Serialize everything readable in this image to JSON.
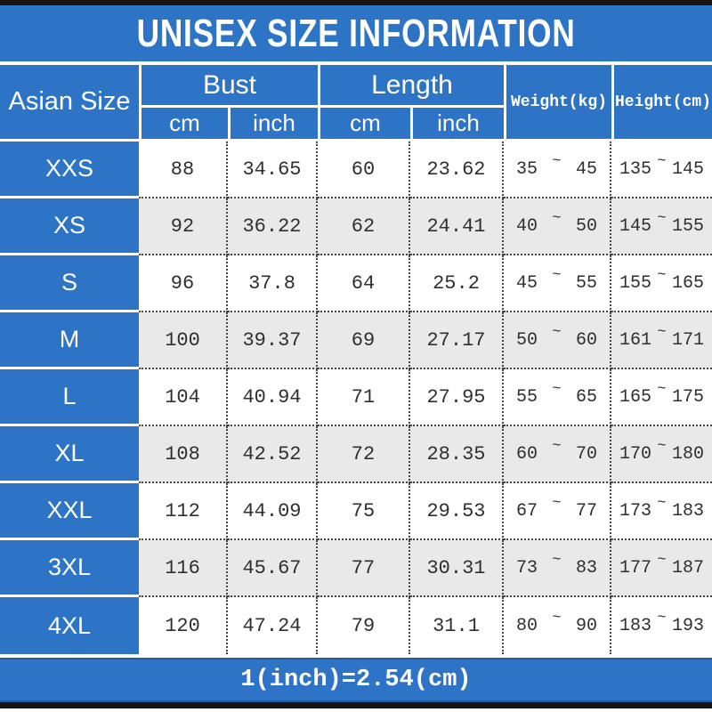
{
  "title": "UNISEX SIZE INFORMATION",
  "header": {
    "size_col": "Asian Size",
    "bust": "Bust",
    "length": "Length",
    "weight": "Weight(kg)",
    "height": "Height(cm)",
    "units": [
      "cm",
      "inch",
      "cm",
      "inch"
    ]
  },
  "tilde": "~",
  "rows": [
    {
      "size": "XXS",
      "bust_cm": "88",
      "bust_inch": "34.65",
      "length_cm": "60",
      "length_inch": "23.62",
      "weight_min": "35",
      "weight_max": "45",
      "height_min": "135",
      "height_max": "145"
    },
    {
      "size": "XS",
      "bust_cm": "92",
      "bust_inch": "36.22",
      "length_cm": "62",
      "length_inch": "24.41",
      "weight_min": "40",
      "weight_max": "50",
      "height_min": "145",
      "height_max": "155"
    },
    {
      "size": "S",
      "bust_cm": "96",
      "bust_inch": "37.8",
      "length_cm": "64",
      "length_inch": "25.2",
      "weight_min": "45",
      "weight_max": "55",
      "height_min": "155",
      "height_max": "165"
    },
    {
      "size": "M",
      "bust_cm": "100",
      "bust_inch": "39.37",
      "length_cm": "69",
      "length_inch": "27.17",
      "weight_min": "50",
      "weight_max": "60",
      "height_min": "161",
      "height_max": "171"
    },
    {
      "size": "L",
      "bust_cm": "104",
      "bust_inch": "40.94",
      "length_cm": "71",
      "length_inch": "27.95",
      "weight_min": "55",
      "weight_max": "65",
      "height_min": "165",
      "height_max": "175"
    },
    {
      "size": "XL",
      "bust_cm": "108",
      "bust_inch": "42.52",
      "length_cm": "72",
      "length_inch": "28.35",
      "weight_min": "60",
      "weight_max": "70",
      "height_min": "170",
      "height_max": "180"
    },
    {
      "size": "XXL",
      "bust_cm": "112",
      "bust_inch": "44.09",
      "length_cm": "75",
      "length_inch": "29.53",
      "weight_min": "67",
      "weight_max": "77",
      "height_min": "173",
      "height_max": "183"
    },
    {
      "size": "3XL",
      "bust_cm": "116",
      "bust_inch": "45.67",
      "length_cm": "77",
      "length_inch": "30.31",
      "weight_min": "73",
      "weight_max": "83",
      "height_min": "177",
      "height_max": "187"
    },
    {
      "size": "4XL",
      "bust_cm": "120",
      "bust_inch": "47.24",
      "length_cm": "79",
      "length_inch": "31.1",
      "weight_min": "80",
      "weight_max": "90",
      "height_min": "183",
      "height_max": "193"
    }
  ],
  "footer_note": "1(inch)=2.54(cm)",
  "colors": {
    "blue": "#2d73c6",
    "row_alt": "#e9e9e9",
    "top_bottom_bar": "#141414",
    "dotted_line": "#454545",
    "text_dark": "#2f2f2f",
    "text_light": "#ffffff"
  },
  "chart_data": {
    "type": "table",
    "title": "UNISEX SIZE INFORMATION",
    "columns": [
      "Asian Size",
      "Bust cm",
      "Bust inch",
      "Length cm",
      "Length inch",
      "Weight(kg)",
      "Height(cm)"
    ],
    "rows": [
      [
        "XXS",
        88,
        34.65,
        60,
        23.62,
        "35~45",
        "135~145"
      ],
      [
        "XS",
        92,
        36.22,
        62,
        24.41,
        "40~50",
        "145~155"
      ],
      [
        "S",
        96,
        37.8,
        64,
        25.2,
        "45~55",
        "155~165"
      ],
      [
        "M",
        100,
        39.37,
        69,
        27.17,
        "50~60",
        "161~171"
      ],
      [
        "L",
        104,
        40.94,
        71,
        27.95,
        "55~65",
        "165~175"
      ],
      [
        "XL",
        108,
        42.52,
        72,
        28.35,
        "60~70",
        "170~180"
      ],
      [
        "XXL",
        112,
        44.09,
        75,
        29.53,
        "67~77",
        "173~183"
      ],
      [
        "3XL",
        116,
        45.67,
        77,
        30.31,
        "73~83",
        "177~187"
      ],
      [
        "4XL",
        120,
        47.24,
        79,
        31.1,
        "80~90",
        "183~193"
      ]
    ],
    "note": "1(inch)=2.54(cm)"
  }
}
